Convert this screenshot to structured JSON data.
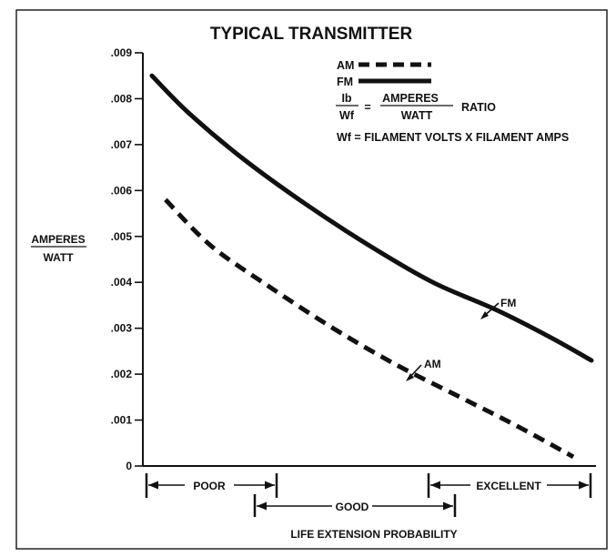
{
  "chart_data": {
    "type": "line",
    "title": "TYPICAL TRANSMITTER",
    "ylabel": {
      "numerator": "AMPERES",
      "denominator": "WATT"
    },
    "xlabel": "LIFE EXTENSION PROBABILITY",
    "ylim": [
      0,
      0.009
    ],
    "yticks": [
      ".001",
      ".002",
      ".003",
      ".004",
      ".005",
      ".006",
      ".007",
      ".008",
      ".009"
    ],
    "ytick_values": [
      0.001,
      0.002,
      0.003,
      0.004,
      0.005,
      0.006,
      0.007,
      0.008,
      0.009
    ],
    "y_zero_label": "0",
    "grid": false,
    "legend": {
      "entries": [
        {
          "label": "AM",
          "style": "dashed"
        },
        {
          "label": "FM",
          "style": "solid"
        }
      ],
      "ratio": {
        "lhs_num": "Ib",
        "lhs_den": "Wf",
        "equals": "=",
        "rhs_num": "AMPERES",
        "rhs_den": "WATT",
        "suffix": "RATIO"
      },
      "definition": "Wf = FILAMENT VOLTS X FILAMENT AMPS"
    },
    "series": [
      {
        "name": "FM",
        "style": "solid",
        "points": [
          [
            0.02,
            0.0085
          ],
          [
            0.1,
            0.0077
          ],
          [
            0.22,
            0.0067
          ],
          [
            0.36,
            0.0057
          ],
          [
            0.5,
            0.0048
          ],
          [
            0.64,
            0.004
          ],
          [
            0.78,
            0.0034
          ],
          [
            0.9,
            0.0028
          ],
          [
            0.99,
            0.0023
          ]
        ]
      },
      {
        "name": "AM",
        "style": "dashed",
        "points": [
          [
            0.05,
            0.0058
          ],
          [
            0.15,
            0.0048
          ],
          [
            0.28,
            0.0039
          ],
          [
            0.42,
            0.003
          ],
          [
            0.56,
            0.0022
          ],
          [
            0.7,
            0.0015
          ],
          [
            0.82,
            0.0009
          ],
          [
            0.95,
            0.0002
          ]
        ]
      }
    ],
    "annotations": [
      {
        "text": "FM",
        "series": "FM"
      },
      {
        "text": "AM",
        "series": "AM"
      }
    ],
    "ranges": [
      {
        "label": "POOR"
      },
      {
        "label": "GOOD"
      },
      {
        "label": "EXCELLENT"
      }
    ]
  },
  "colors": {
    "ink": "#111111",
    "background": "#ffffff"
  }
}
